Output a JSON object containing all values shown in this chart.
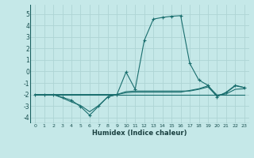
{
  "xlabel": "Humidex (Indice chaleur)",
  "xlim": [
    -0.5,
    23.5
  ],
  "ylim": [
    -4.5,
    5.8
  ],
  "yticks": [
    -4,
    -3,
    -2,
    -1,
    0,
    1,
    2,
    3,
    4,
    5
  ],
  "xticks": [
    0,
    1,
    2,
    3,
    4,
    5,
    6,
    7,
    8,
    9,
    10,
    11,
    12,
    13,
    14,
    15,
    16,
    17,
    18,
    19,
    20,
    21,
    22,
    23
  ],
  "background_color": "#c5e8e8",
  "grid_color": "#aed4d4",
  "line_color": "#1a6e6e",
  "lines": [
    {
      "y": [
        -2.0,
        -2.0,
        -2.0,
        -2.25,
        -2.5,
        -3.05,
        -3.8,
        -3.0,
        -2.2,
        -2.0,
        -0.05,
        -1.55,
        2.7,
        4.55,
        4.7,
        4.8,
        4.85,
        0.7,
        -0.75,
        -1.2,
        -2.2,
        -1.8,
        -1.2,
        -1.4
      ],
      "marker": true
    },
    {
      "y": [
        -2.0,
        -2.0,
        -2.0,
        -2.3,
        -2.65,
        -2.95,
        -3.5,
        -2.95,
        -2.2,
        -2.0,
        -1.75,
        -1.7,
        -1.7,
        -1.7,
        -1.7,
        -1.7,
        -1.7,
        -1.7,
        -1.55,
        -1.35,
        -2.15,
        -1.85,
        -1.25,
        -1.4
      ],
      "marker": false
    },
    {
      "y": [
        -2.0,
        -2.0,
        -2.0,
        -2.0,
        -2.0,
        -2.0,
        -2.0,
        -2.0,
        -2.0,
        -2.0,
        -1.85,
        -1.8,
        -1.8,
        -1.8,
        -1.8,
        -1.8,
        -1.8,
        -1.65,
        -1.5,
        -1.25,
        -2.05,
        -1.95,
        -1.55,
        -1.5
      ],
      "marker": false
    },
    {
      "y": [
        -2.0,
        -2.0,
        -2.0,
        -2.0,
        -2.0,
        -2.0,
        -2.0,
        -2.0,
        -2.0,
        -2.0,
        -2.0,
        -2.0,
        -2.0,
        -2.0,
        -2.0,
        -2.0,
        -2.0,
        -2.0,
        -2.0,
        -2.0,
        -2.0,
        -2.0,
        -2.0,
        -2.0
      ],
      "marker": false
    }
  ]
}
